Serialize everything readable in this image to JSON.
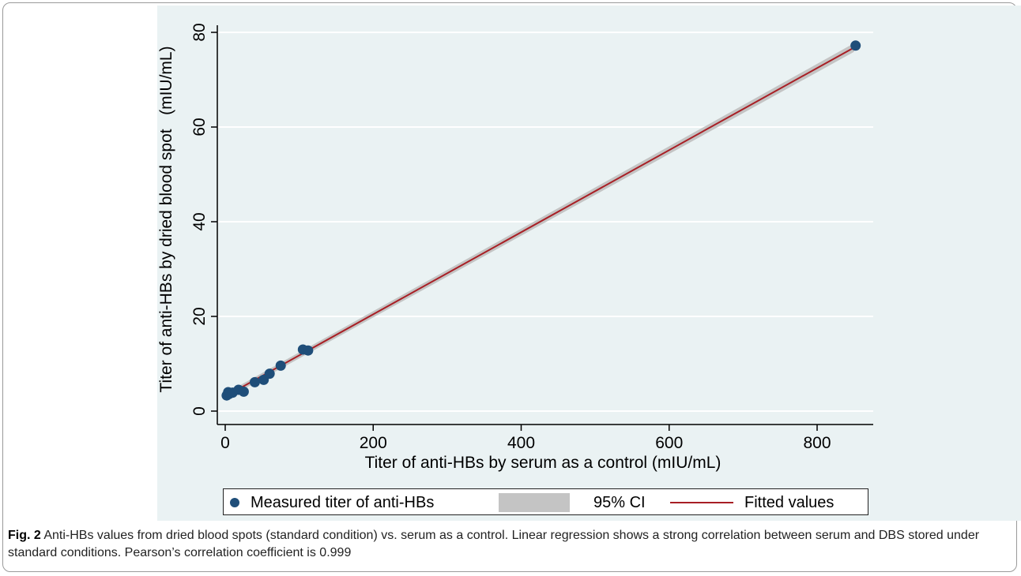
{
  "chart_data": {
    "type": "scatter",
    "xlabel": "Titer of anti-HBs by serum as a control  (mIU/mL)",
    "ylabel": "Titer of anti-HBs by dried blood spot   (mIU/mL)",
    "xlim": [
      0,
      870
    ],
    "ylim": [
      0,
      80
    ],
    "xticks": [
      "0",
      "200",
      "400",
      "600",
      "800"
    ],
    "yticks": [
      "0",
      "20",
      "40",
      "60",
      "80"
    ],
    "xtick_values": [
      0,
      200,
      400,
      600,
      800
    ],
    "ytick_values": [
      0,
      20,
      40,
      60,
      80
    ],
    "grid": true,
    "legend_placement": "bottom",
    "series": [
      {
        "name": "Measured titer of anti-HBs",
        "kind": "points",
        "color": "#1f4e79",
        "x": [
          2,
          4,
          5,
          7,
          10,
          18,
          25,
          40,
          52,
          60,
          75,
          105,
          112,
          852
        ],
        "y": [
          3.3,
          4.0,
          3.6,
          3.8,
          3.9,
          4.5,
          4.1,
          6.1,
          6.6,
          7.9,
          9.6,
          13.0,
          12.8,
          77.2
        ]
      },
      {
        "name": "95% CI",
        "kind": "band",
        "color": "#c4c4c4",
        "x": [
          0,
          850
        ],
        "lower": [
          2.5,
          75.9
        ],
        "upper": [
          3.7,
          77.7
        ]
      },
      {
        "name": "Fitted values",
        "kind": "line",
        "color": "#a81f25",
        "x": [
          0,
          850
        ],
        "y": [
          3.1,
          76.8
        ]
      }
    ]
  },
  "caption": {
    "label": "Fig. 2",
    "text": " Anti-HBs values from dried blood spots (standard condition) vs. serum as a control. Linear regression shows a strong correlation between serum and DBS stored under standard conditions. Pearson’s correlation coefficient is 0.999"
  }
}
